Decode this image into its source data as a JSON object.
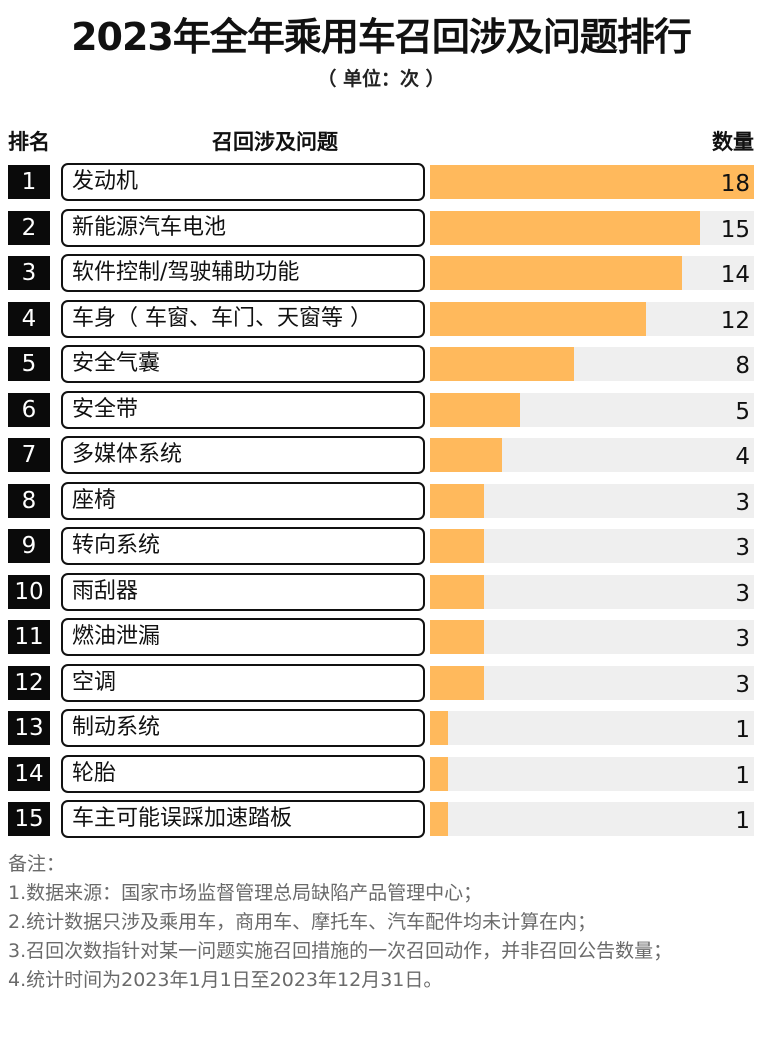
{
  "title": "2023年全年乘用车召回涉及问题排行",
  "subtitle": "（ 单位：次 ）",
  "headers": {
    "rank": "排名",
    "issue": "召回涉及问题",
    "count": "数量"
  },
  "colors": {
    "bar": "#FFB95C",
    "track": "#EFEFEF",
    "rank_bg": "#0A0A0A"
  },
  "chart_data": {
    "type": "bar",
    "orientation": "horizontal",
    "categories": [
      "发动机",
      "新能源汽车电池",
      "软件控制/驾驶辅助功能",
      "车身（ 车窗、车门、天窗等 ）",
      "安全气囊",
      "安全带",
      "多媒体系统",
      "座椅",
      "转向系统",
      "雨刮器",
      "燃油泄漏",
      "空调",
      "制动系统",
      "轮胎",
      "车主可能误踩加速踏板"
    ],
    "ranks": [
      "1",
      "2",
      "3",
      "4",
      "5",
      "6",
      "7",
      "8",
      "9",
      "10",
      "11",
      "12",
      "13",
      "14",
      "15"
    ],
    "values": [
      18,
      15,
      14,
      12,
      8,
      5,
      4,
      3,
      3,
      3,
      3,
      3,
      1,
      1,
      1
    ],
    "xlim": [
      0,
      18
    ],
    "grid": false,
    "legend": "none"
  },
  "notes": {
    "heading": "备注：",
    "lines": [
      "1.数据来源：国家市场监督管理总局缺陷产品管理中心；",
      "2.统计数据只涉及乘用车，商用车、摩托车、汽车配件均未计算在内；",
      "3.召回次数指针对某一问题实施召回措施的一次召回动作，并非召回公告数量；",
      "4.统计时间为2023年1月1日至2023年12月31日。"
    ]
  }
}
